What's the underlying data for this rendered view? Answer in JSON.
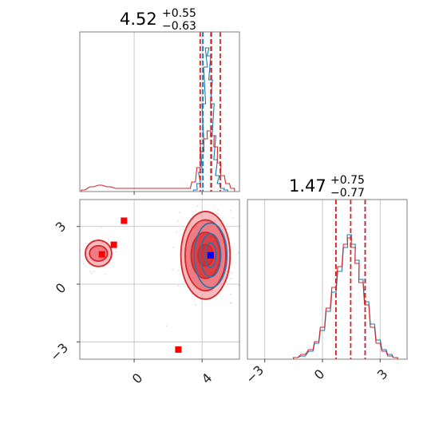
{
  "colors": {
    "blue": "#1f77b4",
    "red": "#d62728",
    "red_fill": "#f4a3a8",
    "red_fill_mid": "#e8636b",
    "grid": "#bdbdbd",
    "frame": "#808080",
    "marker_red": "#ff0000",
    "marker_blue": "#0000ff"
  },
  "chart_data": [
    {
      "type": "histogram",
      "panel": "x-marginal",
      "title": {
        "value": "4.52",
        "plus": "+0.55",
        "minus": "−0.63"
      },
      "xlim": [
        -3.2,
        6.2
      ],
      "grid": true,
      "series": [
        {
          "name": "",
          "color": "#1f77b4",
          "bins": [
            [
              3.6,
              0.01
            ],
            [
              3.8,
              0.05
            ],
            [
              3.9,
              0.12
            ],
            [
              4.0,
              0.3
            ],
            [
              4.1,
              0.55
            ],
            [
              4.2,
              0.78
            ],
            [
              4.3,
              0.9
            ],
            [
              4.4,
              0.85
            ],
            [
              4.5,
              0.7
            ],
            [
              4.6,
              0.55
            ],
            [
              4.7,
              0.35
            ],
            [
              4.8,
              0.2
            ],
            [
              4.9,
              0.1
            ],
            [
              5.0,
              0.05
            ],
            [
              5.2,
              0.02
            ],
            [
              5.4,
              0.01
            ]
          ],
          "vlines": [
            4.05,
            4.55
          ]
        },
        {
          "name": "",
          "color": "#d62728",
          "bins": [
            [
              -3.0,
              0.01
            ],
            [
              -2.5,
              0.03
            ],
            [
              -2.0,
              0.04
            ],
            [
              -1.5,
              0.03
            ],
            [
              -1.0,
              0.02
            ],
            [
              3.2,
              0.02
            ],
            [
              3.5,
              0.06
            ],
            [
              3.8,
              0.15
            ],
            [
              4.0,
              0.25
            ],
            [
              4.2,
              0.33
            ],
            [
              4.4,
              0.38
            ],
            [
              4.6,
              0.35
            ],
            [
              4.8,
              0.28
            ],
            [
              5.0,
              0.18
            ],
            [
              5.2,
              0.1
            ],
            [
              5.5,
              0.05
            ],
            [
              5.8,
              0.02
            ]
          ],
          "vlines": [
            3.89,
            4.52,
            5.07
          ]
        }
      ]
    },
    {
      "type": "contour",
      "panel": "joint",
      "xlim": [
        -3.2,
        6.2
      ],
      "ylim": [
        -3.9,
        4.4
      ],
      "grid": true,
      "xticks": [
        "0",
        "4"
      ],
      "yticks": [
        "3",
        "0",
        "−3"
      ],
      "red_modes": [
        {
          "x": 4.2,
          "y": 1.5,
          "levels": [
            [
              2.9,
              2.85
            ],
            [
              2.4,
              2.3
            ],
            [
              1.7,
              1.5
            ],
            [
              0.9,
              0.7
            ]
          ]
        },
        {
          "x": -2.1,
          "y": 1.6,
          "levels": [
            [
              1.55,
              0.85
            ],
            [
              1.05,
              0.5
            ]
          ]
        }
      ],
      "blue_mode": {
        "x": 4.5,
        "y": 1.5,
        "levels": [
          [
            1.2,
            2.1
          ],
          [
            0.75,
            1.4
          ],
          [
            0.4,
            0.8
          ]
        ]
      },
      "markers": [
        {
          "x": -1.9,
          "y": 1.55,
          "color": "#ff0000"
        },
        {
          "x": -1.2,
          "y": 2.05,
          "color": "#ff0000"
        },
        {
          "x": -0.6,
          "y": 3.3,
          "color": "#ff0000"
        },
        {
          "x": 2.6,
          "y": -3.4,
          "color": "#ff0000"
        },
        {
          "x": 4.5,
          "y": 1.5,
          "color": "#0000ff"
        }
      ]
    },
    {
      "type": "histogram",
      "panel": "y-marginal",
      "title": {
        "value": "1.47",
        "plus": "+0.75",
        "minus": "−0.77"
      },
      "xlim": [
        -3.9,
        4.4
      ],
      "grid": true,
      "xticks": [
        "−3",
        "0",
        "3"
      ],
      "series": [
        {
          "name": "",
          "color": "#1f77b4",
          "bins": [
            [
              -1.4,
              0.01
            ],
            [
              -1.0,
              0.02
            ],
            [
              -0.6,
              0.05
            ],
            [
              -0.3,
              0.1
            ],
            [
              0.0,
              0.18
            ],
            [
              0.3,
              0.3
            ],
            [
              0.6,
              0.42
            ],
            [
              0.9,
              0.55
            ],
            [
              1.2,
              0.7
            ],
            [
              1.4,
              0.78
            ],
            [
              1.6,
              0.72
            ],
            [
              1.8,
              0.62
            ],
            [
              2.0,
              0.5
            ],
            [
              2.3,
              0.36
            ],
            [
              2.6,
              0.22
            ],
            [
              2.9,
              0.12
            ],
            [
              3.2,
              0.06
            ],
            [
              3.5,
              0.03
            ],
            [
              3.8,
              0.01
            ]
          ],
          "vlines": [
            0.7,
            2.22
          ]
        },
        {
          "name": "",
          "color": "#d62728",
          "bins": [
            [
              -1.4,
              0.01
            ],
            [
              -1.0,
              0.03
            ],
            [
              -0.6,
              0.06
            ],
            [
              -0.3,
              0.11
            ],
            [
              0.0,
              0.2
            ],
            [
              0.3,
              0.32
            ],
            [
              0.6,
              0.45
            ],
            [
              0.9,
              0.58
            ],
            [
              1.2,
              0.72
            ],
            [
              1.4,
              0.76
            ],
            [
              1.6,
              0.7
            ],
            [
              1.8,
              0.6
            ],
            [
              2.0,
              0.48
            ],
            [
              2.3,
              0.34
            ],
            [
              2.6,
              0.2
            ],
            [
              2.9,
              0.1
            ],
            [
              3.2,
              0.05
            ],
            [
              3.5,
              0.02
            ],
            [
              3.8,
              0.01
            ]
          ],
          "vlines": [
            0.7,
            1.47,
            2.22
          ]
        }
      ]
    }
  ]
}
